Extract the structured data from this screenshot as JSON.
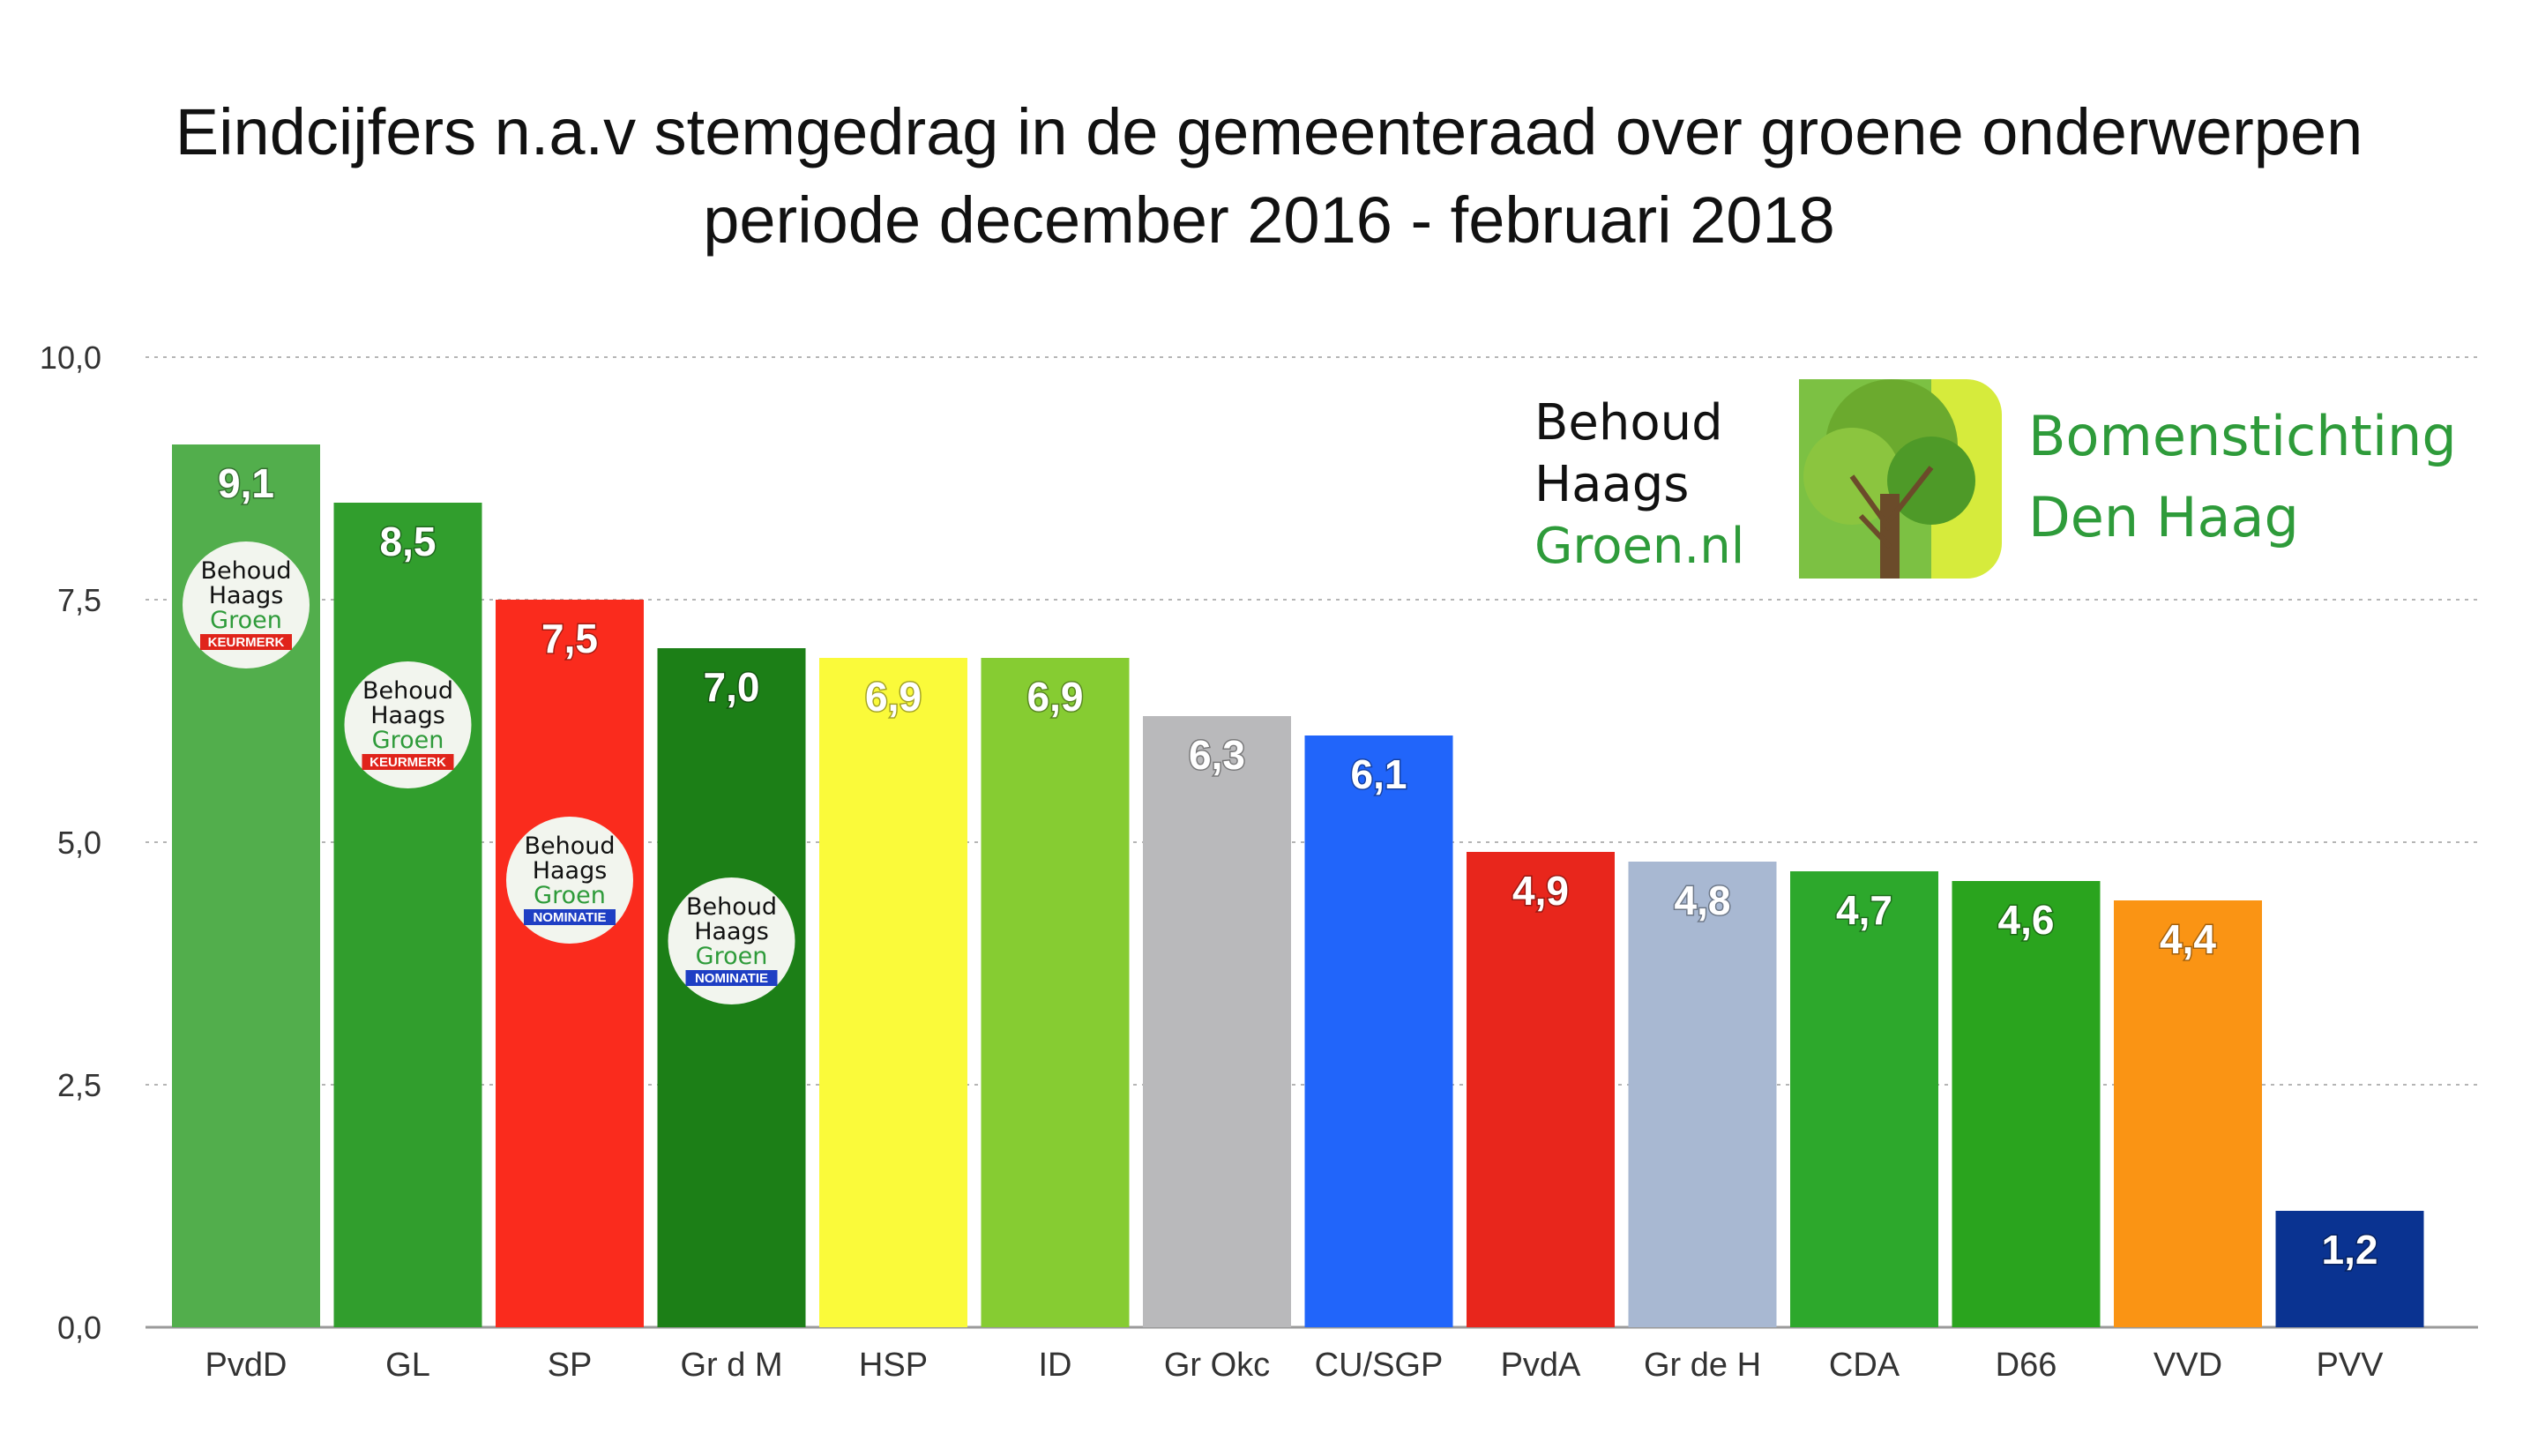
{
  "chart_data": {
    "type": "bar",
    "title": [
      "Eindcijfers n.a.v stemgedrag in de gemeenteraad over groene onderwerpen",
      "periode december 2016 - februari 2018"
    ],
    "categories": [
      "PvdD",
      "GL",
      "SP",
      "Gr d M",
      "HSP",
      "ID",
      "Gr Okc",
      "CU/SGP",
      "PvdA",
      "Gr de H",
      "CDA",
      "D66",
      "VVD",
      "PVV"
    ],
    "values": [
      9.1,
      8.5,
      7.5,
      7.0,
      6.9,
      6.9,
      6.3,
      6.1,
      4.9,
      4.8,
      4.7,
      4.6,
      4.4,
      1.2
    ],
    "value_labels": [
      "9,1",
      "8,5",
      "7,5",
      "7,0",
      "6,9",
      "6,9",
      "6,3",
      "6,1",
      "4,9",
      "4,8",
      "4,7",
      "4,6",
      "4,4",
      "1,2"
    ],
    "colors": [
      "#52AE4C",
      "#319E2D",
      "#FA2B1D",
      "#1C7F17",
      "#FAFA3A",
      "#86CC32",
      "#B9B9BB",
      "#2165FA",
      "#E8261C",
      "#A8B8D2",
      "#2DA82C",
      "#2AA41E",
      "#FA9414",
      "#0A3391"
    ],
    "ylim": [
      0,
      10
    ],
    "yticks": [
      0,
      2.5,
      5,
      7.5,
      10
    ],
    "ytick_labels": [
      "0,0",
      "2,5",
      "5,0",
      "7,5",
      "10,0"
    ],
    "xlabel": "",
    "ylabel": "",
    "grid": true,
    "legend": "none"
  },
  "badges": [
    {
      "bar": "PvdD",
      "lines": [
        "Behoud",
        "Haags",
        "Groen"
      ],
      "tag": "KEURMERK",
      "tag_color": "#E0241B"
    },
    {
      "bar": "GL",
      "lines": [
        "Behoud",
        "Haags",
        "Groen"
      ],
      "tag": "KEURMERK",
      "tag_color": "#E0241B"
    },
    {
      "bar": "SP",
      "lines": [
        "Behoud",
        "Haags",
        "Groen"
      ],
      "tag": "NOMINATIE",
      "tag_color": "#1F3FC4"
    },
    {
      "bar": "Gr d M",
      "lines": [
        "Behoud",
        "Haags",
        "Groen"
      ],
      "tag": "NOMINATIE",
      "tag_color": "#1F3FC4"
    }
  ],
  "logos": {
    "behoud": {
      "lines": [
        "Behoud",
        "Haags",
        "Groen.nl"
      ],
      "colors": [
        "#111111",
        "#111111",
        "#2E9B3A"
      ]
    },
    "bomenstichting": {
      "lines": [
        "Bomenstichting",
        "Den Haag"
      ],
      "color": "#2E9B3A"
    }
  }
}
